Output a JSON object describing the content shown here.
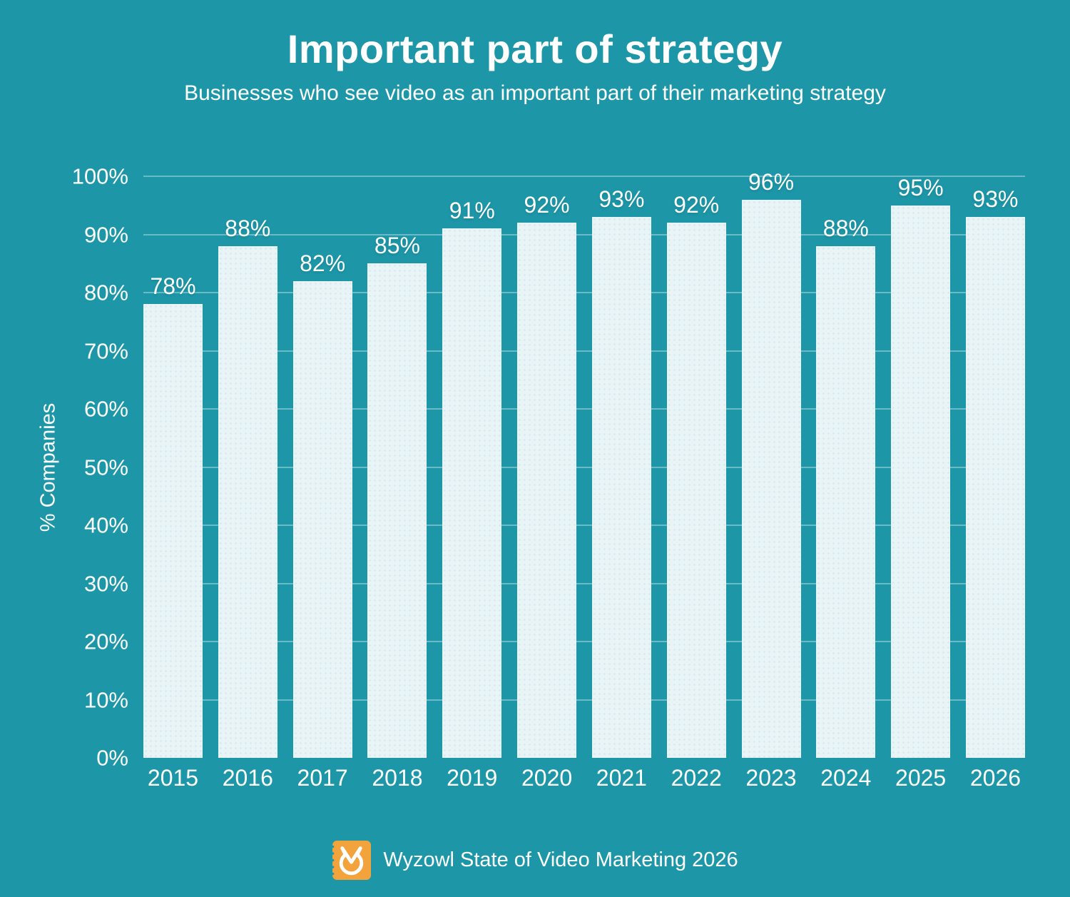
{
  "title": "Important part of strategy",
  "subtitle": "Businesses who see video as an important part of their marketing strategy",
  "chart_data": {
    "type": "bar",
    "title": "Important part of strategy",
    "subtitle": "Businesses who see video as an important part of their marketing strategy",
    "categories": [
      "2015",
      "2016",
      "2017",
      "2018",
      "2019",
      "2020",
      "2021",
      "2022",
      "2023",
      "2024",
      "2025",
      "2026"
    ],
    "values": [
      78,
      88,
      82,
      85,
      91,
      92,
      93,
      92,
      96,
      88,
      95,
      93
    ],
    "value_labels": [
      "78%",
      "88%",
      "82%",
      "85%",
      "91%",
      "92%",
      "93%",
      "92%",
      "96%",
      "88%",
      "95%",
      "93%"
    ],
    "xlabel": "",
    "ylabel": "% Companies",
    "ylim": [
      0,
      100
    ],
    "ytick_step": 10,
    "ytick_labels": [
      "0%",
      "10%",
      "20%",
      "30%",
      "40%",
      "50%",
      "60%",
      "70%",
      "80%",
      "90%",
      "100%"
    ],
    "grid": true,
    "legend": "none",
    "colors": {
      "background": "#1D97A8",
      "bar_fill": "#E9F4F7",
      "gridline": "rgba(255,255,255,0.35)",
      "text": "#FFFFFF"
    }
  },
  "footer": {
    "source_label": "Wyzowl State of Video Marketing 2026",
    "logo": {
      "name": "wyzowl-logo",
      "background_color": "#F2A33C",
      "glyph_color": "#FFFFFF"
    }
  }
}
